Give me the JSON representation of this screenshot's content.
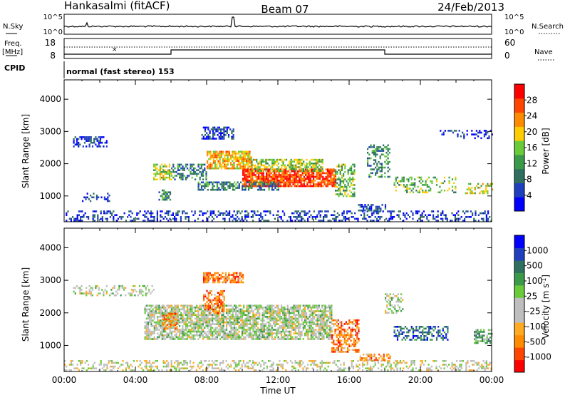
{
  "header": {
    "station": "Hankasalmi (fitACF)",
    "beam": "Beam 07",
    "date": "24/Feb/2013"
  },
  "panel_labels": {
    "nsky": "N.Sky",
    "nsearch": "N.Search",
    "freq_line1": "Freq.",
    "freq_line2": "[MHz]",
    "nave": "Nave",
    "cpid": "CPID",
    "cpid_value": "normal (fast stereo) 153",
    "noise_tick_top": "10^5",
    "noise_tick_bottom": "10^0",
    "noise_tick_top_right": "10^5",
    "noise_tick_bottom_right": "10^0",
    "freq_tick_top": "18",
    "freq_tick_bottom": "8",
    "nave_tick_top": "60",
    "nave_tick_bottom": "0"
  },
  "colors": {
    "power_scale": [
      "#0000ff",
      "#1f3fbf",
      "#2f6f5f",
      "#3a9a4a",
      "#6acb3a",
      "#ffcc00",
      "#ff8c00",
      "#ff4500",
      "#ff0000"
    ],
    "velocity_scale": [
      "#ff0000",
      "#ff4500",
      "#ff8c00",
      "#ffaa20",
      "#bebebe",
      "#bebebe",
      "#6acb3a",
      "#3a9a4a",
      "#2f6f5f",
      "#1f3fbf",
      "#0000ff"
    ],
    "gray_scatter": "#bebebe"
  },
  "chart_data": [
    {
      "type": "heatmap",
      "name": "power",
      "ylabel": "Slant Range [km]",
      "yticks": [
        1000,
        2000,
        3000,
        4000
      ],
      "ylim": [
        200,
        4600
      ],
      "xlim": [
        0,
        24
      ],
      "colorbar": {
        "label": "Power [dB]",
        "ticks": [
          "4",
          "8",
          "12",
          "16",
          "20",
          "24",
          "28"
        ],
        "range": [
          0,
          30
        ]
      },
      "regions": [
        {
          "t0": 0.0,
          "t1": 24.0,
          "r0": 250,
          "r1": 550,
          "level": 0.15,
          "density": 0.35
        },
        {
          "t0": 0.5,
          "t1": 2.5,
          "r0": 2550,
          "r1": 2850,
          "level": 0.15,
          "density": 0.55
        },
        {
          "t0": 1.0,
          "t1": 2.5,
          "r0": 850,
          "r1": 1100,
          "level": 0.15,
          "density": 0.3
        },
        {
          "t0": 5.0,
          "t1": 6.0,
          "r0": 1500,
          "r1": 2000,
          "level": 0.55,
          "density": 0.55
        },
        {
          "t0": 5.3,
          "t1": 6.0,
          "r0": 900,
          "r1": 1200,
          "level": 0.35,
          "density": 0.5
        },
        {
          "t0": 6.0,
          "t1": 8.0,
          "r0": 1500,
          "r1": 2000,
          "level": 0.3,
          "density": 0.5
        },
        {
          "t0": 8.0,
          "t1": 10.5,
          "r0": 1850,
          "r1": 2400,
          "level": 0.65,
          "density": 0.8
        },
        {
          "t0": 10.0,
          "t1": 15.2,
          "r0": 1300,
          "r1": 1850,
          "level": 0.85,
          "density": 0.85
        },
        {
          "t0": 10.5,
          "t1": 14.5,
          "r0": 1800,
          "r1": 2150,
          "level": 0.5,
          "density": 0.6
        },
        {
          "t0": 7.5,
          "t1": 12.0,
          "r0": 1200,
          "r1": 1450,
          "level": 0.3,
          "density": 0.6
        },
        {
          "t0": 7.7,
          "t1": 9.5,
          "r0": 2800,
          "r1": 3150,
          "level": 0.15,
          "density": 0.6
        },
        {
          "t0": 15.2,
          "t1": 16.3,
          "r0": 1000,
          "r1": 2000,
          "level": 0.45,
          "density": 0.5
        },
        {
          "t0": 16.5,
          "t1": 18.0,
          "r0": 550,
          "r1": 750,
          "level": 0.2,
          "density": 0.4
        },
        {
          "t0": 17.0,
          "t1": 18.3,
          "r0": 1600,
          "r1": 2600,
          "level": 0.35,
          "density": 0.4
        },
        {
          "t0": 18.5,
          "t1": 22.0,
          "r0": 1100,
          "r1": 1600,
          "level": 0.45,
          "density": 0.35
        },
        {
          "t0": 22.5,
          "t1": 24.0,
          "r0": 1100,
          "r1": 1400,
          "level": 0.55,
          "density": 0.45
        },
        {
          "t0": 21.0,
          "t1": 24.0,
          "r0": 2800,
          "r1": 3050,
          "level": 0.1,
          "density": 0.25
        }
      ]
    },
    {
      "type": "heatmap",
      "name": "velocity",
      "xlabel": "Time UT",
      "ylabel": "Slant Range [km]",
      "yticks": [
        1000,
        2000,
        3000,
        4000
      ],
      "ylim": [
        200,
        4600
      ],
      "xlim": [
        0,
        24
      ],
      "xticks": [
        "00:00",
        "04:00",
        "08:00",
        "12:00",
        "16:00",
        "20:00",
        "00:00"
      ],
      "colorbar": {
        "label": "Velocity [m s-1]",
        "ticks": [
          "-1000",
          "-500",
          "-100",
          "-25",
          "25",
          "100",
          "500",
          "1000"
        ],
        "range": [
          -1200,
          1200
        ]
      },
      "regions": [
        {
          "t0": 0.0,
          "t1": 24.0,
          "r0": 250,
          "r1": 550,
          "level": 0.45,
          "density": 0.35
        },
        {
          "t0": 0.5,
          "t1": 5.0,
          "r0": 2550,
          "r1": 2850,
          "level": 0.5,
          "density": 0.35
        },
        {
          "t0": 4.5,
          "t1": 15.0,
          "r0": 1200,
          "r1": 2250,
          "level": 0.5,
          "density": 0.75
        },
        {
          "t0": 5.5,
          "t1": 6.3,
          "r0": 1500,
          "r1": 2000,
          "level": 0.25,
          "density": 0.6
        },
        {
          "t0": 7.8,
          "t1": 10.0,
          "r0": 2950,
          "r1": 3250,
          "level": 0.22,
          "density": 0.7
        },
        {
          "t0": 7.8,
          "t1": 9.0,
          "r0": 2000,
          "r1": 2700,
          "level": 0.22,
          "density": 0.55
        },
        {
          "t0": 15.0,
          "t1": 16.5,
          "r0": 800,
          "r1": 1800,
          "level": 0.22,
          "density": 0.55
        },
        {
          "t0": 16.5,
          "t1": 18.3,
          "r0": 550,
          "r1": 750,
          "level": 0.25,
          "density": 0.5
        },
        {
          "t0": 18.5,
          "t1": 21.5,
          "r0": 1150,
          "r1": 1600,
          "level": 0.8,
          "density": 0.45
        },
        {
          "t0": 23.0,
          "t1": 24.0,
          "r0": 1100,
          "r1": 1500,
          "level": 0.65,
          "density": 0.6
        },
        {
          "t0": 18.0,
          "t1": 19.0,
          "r0": 2000,
          "r1": 2600,
          "level": 0.5,
          "density": 0.3
        }
      ]
    }
  ]
}
